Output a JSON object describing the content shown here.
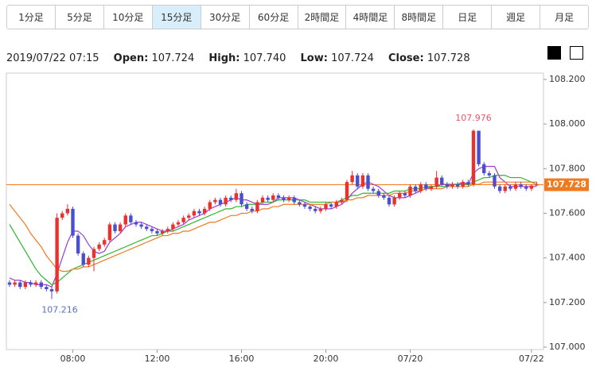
{
  "tabs": [
    "1分足",
    "5分足",
    "10分足",
    "15分足",
    "30分足",
    "60分足",
    "2時間足",
    "4時間足",
    "8時間足",
    "日足",
    "週足",
    "月足"
  ],
  "header": {
    "time": "2019/07/22 07:15",
    "open_label": "Open:",
    "open": "107.724",
    "high_label": "High:",
    "high": "107.740",
    "low_label": "Low:",
    "low": "107.724",
    "close_label": "Close:",
    "close": "107.728"
  },
  "chart_data": {
    "type": "candlestick",
    "categories": [
      null,
      null,
      null,
      null,
      null,
      null,
      null,
      null,
      null,
      null,
      null,
      null,
      "08:00",
      null,
      null,
      null,
      null,
      null,
      null,
      null,
      null,
      null,
      null,
      null,
      null,
      null,
      null,
      null,
      "12:00",
      null,
      null,
      null,
      null,
      null,
      null,
      null,
      null,
      null,
      null,
      null,
      null,
      null,
      null,
      null,
      "16:00",
      null,
      null,
      null,
      null,
      null,
      null,
      null,
      null,
      null,
      null,
      null,
      null,
      null,
      null,
      null,
      "20:00",
      null,
      null,
      null,
      null,
      null,
      null,
      null,
      null,
      null,
      null,
      null,
      null,
      null,
      null,
      null,
      "07/20",
      null,
      null,
      null,
      null,
      null,
      null,
      null,
      null,
      null,
      null,
      null,
      null,
      null,
      null,
      null,
      null,
      null,
      null,
      null,
      null,
      null,
      null,
      "07/22",
      null
    ],
    "open": [
      107.29,
      107.28,
      107.29,
      107.27,
      107.29,
      107.28,
      107.29,
      107.27,
      107.26,
      107.25,
      107.58,
      107.6,
      107.62,
      107.5,
      107.42,
      107.37,
      107.4,
      107.44,
      107.46,
      107.48,
      107.55,
      107.52,
      107.55,
      107.59,
      107.56,
      107.55,
      107.54,
      107.53,
      107.52,
      107.51,
      107.52,
      107.53,
      107.55,
      107.56,
      107.58,
      107.59,
      107.61,
      107.6,
      107.62,
      107.65,
      107.66,
      107.64,
      107.67,
      107.66,
      107.69,
      107.64,
      107.62,
      107.61,
      107.65,
      107.67,
      107.66,
      107.68,
      107.67,
      107.66,
      107.67,
      107.65,
      107.64,
      107.63,
      107.62,
      107.61,
      107.62,
      107.64,
      107.63,
      107.65,
      107.66,
      107.74,
      107.77,
      107.72,
      107.77,
      107.71,
      107.7,
      107.68,
      107.67,
      107.64,
      107.67,
      107.69,
      107.68,
      107.72,
      107.7,
      107.73,
      107.71,
      107.72,
      107.76,
      107.73,
      107.72,
      107.73,
      107.72,
      107.74,
      107.73,
      107.97,
      107.82,
      107.78,
      107.77,
      107.72,
      107.7,
      107.72,
      107.71,
      107.73,
      107.72,
      107.71,
      107.724
    ],
    "high": [
      107.3,
      107.3,
      107.3,
      107.3,
      107.3,
      107.3,
      107.3,
      107.28,
      107.27,
      107.6,
      107.61,
      107.64,
      107.63,
      107.51,
      107.43,
      107.41,
      107.45,
      107.47,
      107.49,
      107.56,
      107.56,
      107.56,
      107.6,
      107.6,
      107.57,
      107.56,
      107.55,
      107.54,
      107.53,
      107.53,
      107.54,
      107.56,
      107.57,
      107.59,
      107.6,
      107.62,
      107.62,
      107.63,
      107.66,
      107.67,
      107.67,
      107.68,
      107.68,
      107.71,
      107.7,
      107.65,
      107.63,
      107.66,
      107.68,
      107.68,
      107.69,
      107.69,
      107.68,
      107.68,
      107.68,
      107.66,
      107.65,
      107.64,
      107.63,
      107.63,
      107.65,
      107.65,
      107.66,
      107.67,
      107.75,
      107.79,
      107.78,
      107.78,
      107.78,
      107.72,
      107.71,
      107.69,
      107.68,
      107.68,
      107.7,
      107.7,
      107.73,
      107.73,
      107.74,
      107.74,
      107.73,
      107.79,
      107.77,
      107.74,
      107.74,
      107.74,
      107.75,
      107.75,
      107.976,
      107.97,
      107.83,
      107.79,
      107.78,
      107.73,
      107.73,
      107.73,
      107.74,
      107.74,
      107.73,
      107.73,
      107.74
    ],
    "low": [
      107.27,
      107.27,
      107.26,
      107.26,
      107.27,
      107.27,
      107.26,
      107.25,
      107.216,
      107.24,
      107.57,
      107.59,
      107.49,
      107.41,
      107.36,
      107.36,
      107.34,
      107.43,
      107.45,
      107.47,
      107.51,
      107.51,
      107.54,
      107.55,
      107.54,
      107.53,
      107.52,
      107.51,
      107.5,
      107.5,
      107.51,
      107.52,
      107.54,
      107.55,
      107.57,
      107.58,
      107.59,
      107.59,
      107.61,
      107.64,
      107.63,
      107.63,
      107.65,
      107.65,
      107.63,
      107.61,
      107.6,
      107.6,
      107.64,
      107.65,
      107.65,
      107.66,
      107.65,
      107.65,
      107.64,
      107.63,
      107.62,
      107.61,
      107.6,
      107.6,
      107.61,
      107.62,
      107.62,
      107.64,
      107.65,
      107.73,
      107.71,
      107.71,
      107.7,
      107.69,
      107.67,
      107.66,
      107.63,
      107.63,
      107.66,
      107.67,
      107.67,
      107.69,
      107.69,
      107.7,
      107.7,
      107.71,
      107.72,
      107.71,
      107.71,
      107.71,
      107.71,
      107.72,
      107.72,
      107.81,
      107.77,
      107.76,
      107.71,
      107.69,
      107.69,
      107.7,
      107.7,
      107.71,
      107.7,
      107.7,
      107.724
    ],
    "close": [
      107.28,
      107.29,
      107.27,
      107.29,
      107.28,
      107.29,
      107.27,
      107.26,
      107.25,
      107.58,
      107.6,
      107.62,
      107.5,
      107.42,
      107.37,
      107.4,
      107.44,
      107.46,
      107.48,
      107.55,
      107.52,
      107.55,
      107.59,
      107.56,
      107.55,
      107.54,
      107.53,
      107.52,
      107.51,
      107.52,
      107.53,
      107.55,
      107.56,
      107.58,
      107.59,
      107.61,
      107.6,
      107.62,
      107.65,
      107.66,
      107.64,
      107.67,
      107.66,
      107.69,
      107.64,
      107.62,
      107.61,
      107.65,
      107.67,
      107.66,
      107.68,
      107.67,
      107.66,
      107.67,
      107.65,
      107.64,
      107.63,
      107.62,
      107.61,
      107.62,
      107.64,
      107.63,
      107.65,
      107.66,
      107.74,
      107.77,
      107.72,
      107.77,
      107.71,
      107.7,
      107.68,
      107.67,
      107.64,
      107.67,
      107.69,
      107.68,
      107.72,
      107.7,
      107.73,
      107.71,
      107.72,
      107.76,
      107.73,
      107.72,
      107.73,
      107.72,
      107.74,
      107.73,
      107.97,
      107.82,
      107.78,
      107.77,
      107.72,
      107.7,
      107.72,
      107.71,
      107.73,
      107.72,
      107.71,
      107.724,
      107.728
    ],
    "up_color": "#e8322d",
    "down_color": "#4a4fd0",
    "series": [
      {
        "color": "#a03ad8",
        "values": [
          107.31,
          107.3,
          107.3,
          107.29,
          107.29,
          107.28,
          107.28,
          107.28,
          107.27,
          107.33,
          107.4,
          107.47,
          107.52,
          107.52,
          107.5,
          107.46,
          107.43,
          107.42,
          107.43,
          107.47,
          107.49,
          107.51,
          107.54,
          107.55,
          107.56,
          107.56,
          107.55,
          107.54,
          107.53,
          107.52,
          107.52,
          107.53,
          107.54,
          107.55,
          107.57,
          107.58,
          107.59,
          107.6,
          107.62,
          107.63,
          107.64,
          107.65,
          107.66,
          107.67,
          107.66,
          107.66,
          107.65,
          107.64,
          107.64,
          107.64,
          107.65,
          107.67,
          107.67,
          107.67,
          107.67,
          107.66,
          107.65,
          107.64,
          107.63,
          107.62,
          107.62,
          107.62,
          107.63,
          107.64,
          107.66,
          107.69,
          107.71,
          107.73,
          107.74,
          107.73,
          107.72,
          107.7,
          107.68,
          107.67,
          107.67,
          107.67,
          107.68,
          107.69,
          107.7,
          107.71,
          107.72,
          107.72,
          107.73,
          107.73,
          107.73,
          107.73,
          107.74,
          107.73,
          107.78,
          107.8,
          107.81,
          107.81,
          107.81,
          107.76,
          107.74,
          107.72,
          107.72,
          107.72,
          107.72,
          107.72,
          107.72
        ]
      },
      {
        "color": "#2fb52f",
        "values": [
          107.55,
          107.51,
          107.47,
          107.43,
          107.39,
          107.35,
          107.32,
          107.3,
          107.28,
          107.29,
          107.31,
          107.33,
          107.35,
          107.36,
          107.37,
          107.38,
          107.39,
          107.4,
          107.41,
          107.42,
          107.43,
          107.44,
          107.45,
          107.46,
          107.47,
          107.48,
          107.49,
          107.5,
          107.5,
          107.51,
          107.52,
          107.52,
          107.53,
          107.54,
          107.55,
          107.56,
          107.57,
          107.58,
          107.59,
          107.6,
          107.61,
          107.62,
          107.62,
          107.63,
          107.63,
          107.64,
          107.64,
          107.64,
          107.65,
          107.65,
          107.65,
          107.66,
          107.66,
          107.66,
          107.66,
          107.66,
          107.66,
          107.65,
          107.65,
          107.65,
          107.65,
          107.65,
          107.65,
          107.66,
          107.67,
          107.68,
          107.68,
          107.69,
          107.69,
          107.69,
          107.69,
          107.69,
          107.69,
          107.7,
          107.7,
          107.7,
          107.71,
          107.71,
          107.71,
          107.72,
          107.72,
          107.72,
          107.72,
          107.72,
          107.73,
          107.73,
          107.73,
          107.73,
          107.74,
          107.75,
          107.76,
          107.76,
          107.77,
          107.77,
          107.77,
          107.76,
          107.76,
          107.76,
          107.75,
          107.74,
          107.73
        ]
      },
      {
        "color": "#f07a20",
        "values": [
          107.64,
          107.61,
          107.58,
          107.55,
          107.51,
          107.48,
          107.45,
          107.41,
          107.38,
          107.35,
          107.34,
          107.34,
          107.35,
          107.35,
          107.36,
          107.36,
          107.37,
          107.38,
          107.39,
          107.4,
          107.41,
          107.42,
          107.43,
          107.44,
          107.45,
          107.46,
          107.47,
          107.48,
          107.49,
          107.5,
          107.5,
          107.51,
          107.51,
          107.52,
          107.52,
          107.53,
          107.54,
          107.55,
          107.56,
          107.56,
          107.57,
          107.58,
          107.59,
          107.59,
          107.6,
          107.6,
          107.61,
          107.61,
          107.62,
          107.62,
          107.63,
          107.63,
          107.64,
          107.64,
          107.64,
          107.64,
          107.64,
          107.64,
          107.64,
          107.64,
          107.64,
          107.65,
          107.65,
          107.65,
          107.66,
          107.66,
          107.67,
          107.67,
          107.68,
          107.68,
          107.68,
          107.68,
          107.68,
          107.69,
          107.69,
          107.69,
          107.7,
          107.7,
          107.7,
          107.71,
          107.71,
          107.71,
          107.71,
          107.72,
          107.72,
          107.72,
          107.72,
          107.72,
          107.73,
          107.73,
          107.74,
          107.74,
          107.74,
          107.74,
          107.74,
          107.74,
          107.74,
          107.74,
          107.74,
          107.74,
          107.74
        ]
      }
    ],
    "price_line": {
      "value": 107.728,
      "label": "107.728",
      "color": "#f07a20"
    },
    "annotations": [
      {
        "text": "107.976",
        "color": "#e8566a"
      },
      {
        "text": "107.216",
        "color": "#5a6fc0"
      }
    ],
    "ylim": [
      107.0,
      108.2
    ],
    "yticks": [
      {
        "value": 107.0,
        "label": "107.000"
      },
      {
        "value": 107.2,
        "label": "107.200"
      },
      {
        "value": 107.4,
        "label": "107.400"
      },
      {
        "value": 107.6,
        "label": "107.600"
      },
      {
        "value": 107.8,
        "label": "107.800"
      },
      {
        "value": 108.0,
        "label": "108.000"
      },
      {
        "value": 108.2,
        "label": "108.200"
      }
    ]
  }
}
